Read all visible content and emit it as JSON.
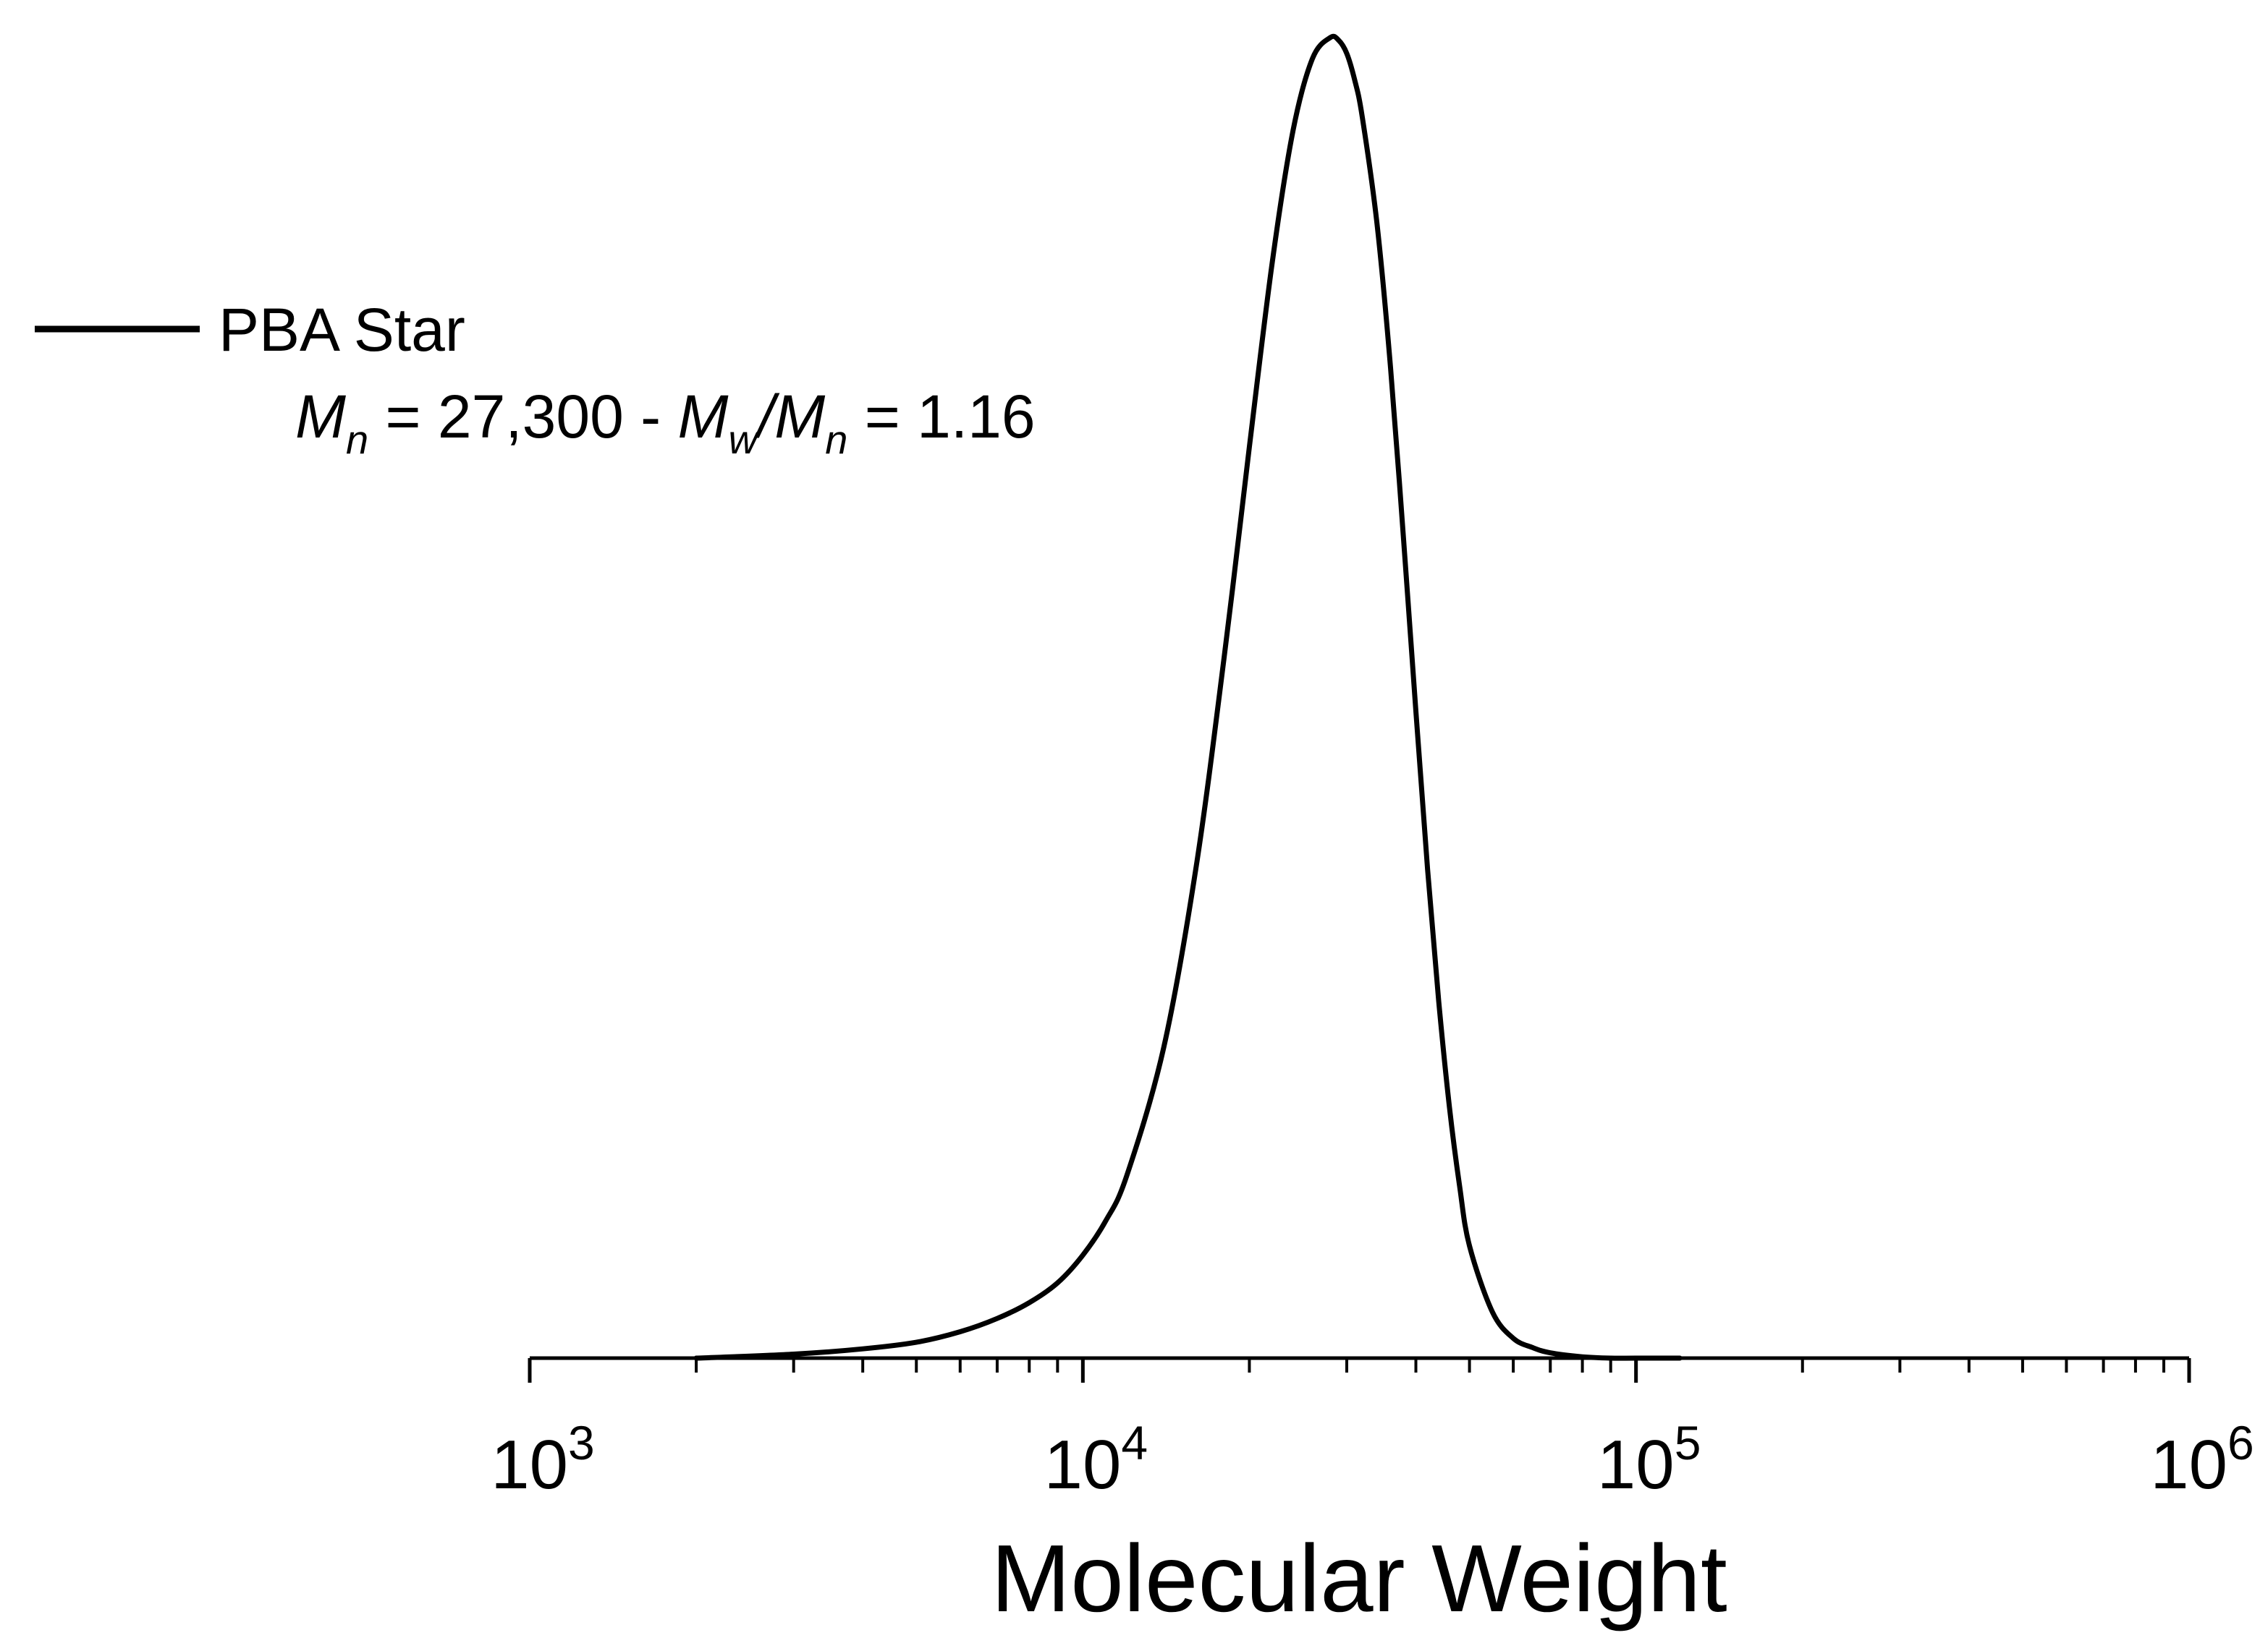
{
  "chart_data": {
    "type": "line",
    "title": "",
    "xlabel": "Molecular Weight",
    "ylabel": "",
    "x_scale": "log",
    "xlim": [
      1000,
      1000000
    ],
    "ylim": [
      0,
      1
    ],
    "y_axis_visible": false,
    "grid": false,
    "x_ticks": [
      {
        "value": 1000,
        "base": "10",
        "exp": "3"
      },
      {
        "value": 10000,
        "base": "10",
        "exp": "4"
      },
      {
        "value": 100000,
        "base": "10",
        "exp": "5"
      },
      {
        "value": 1000000,
        "base": "10",
        "exp": "6"
      }
    ],
    "series": [
      {
        "name": "PBA Star",
        "color": "#000000",
        "x": [
          2000,
          3000,
          4000,
          5000,
          6000,
          7000,
          8000,
          9000,
          10000,
          11000,
          12000,
          14000,
          16000,
          18000,
          20000,
          22000,
          24000,
          26000,
          28000,
          29000,
          30000,
          31000,
          32000,
          34000,
          36000,
          38000,
          40000,
          42000,
          44000,
          46000,
          48000,
          50000,
          55000,
          60000,
          65000,
          70000,
          80000,
          90000,
          100000,
          120000
        ],
        "y": [
          0.0,
          0.003,
          0.007,
          0.012,
          0.02,
          0.03,
          0.042,
          0.057,
          0.078,
          0.104,
          0.138,
          0.235,
          0.37,
          0.53,
          0.69,
          0.83,
          0.93,
          0.984,
          1.0,
          0.998,
          0.988,
          0.968,
          0.94,
          0.86,
          0.75,
          0.62,
          0.49,
          0.37,
          0.27,
          0.19,
          0.13,
          0.085,
          0.035,
          0.015,
          0.008,
          0.004,
          0.001,
          0.0,
          0.0,
          0.0
        ]
      }
    ],
    "legend": {
      "position": "top-left",
      "entry": "PBA Star",
      "annotation": {
        "mn_symbol": "M",
        "mn_sub": "n",
        "mn_text": " = 27,300 - ",
        "mw_symbol": "M",
        "mw_sub": "w",
        "slash": "/",
        "mn2_symbol": "M",
        "mn2_sub": "n",
        "pdi_text": " = 1.16"
      }
    }
  }
}
